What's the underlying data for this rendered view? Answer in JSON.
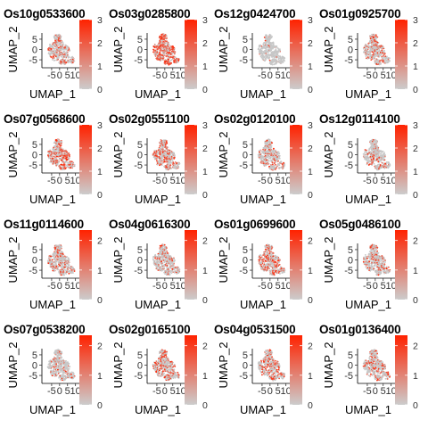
{
  "colors": {
    "low": "#cccccc",
    "high": "#ff2200",
    "point_grey": "#c7c7c7"
  },
  "chart_data": [
    {
      "type": "scatter",
      "title": "Os10g0533600",
      "xlabel": "UMAP_1",
      "ylabel": "UMAP_2",
      "x_ticks": [
        "-5",
        "0",
        "5",
        "10"
      ],
      "y_ticks": [
        "5",
        "0",
        "-5"
      ],
      "color_scale": {
        "min": 0,
        "max": 3,
        "ticks": [
          "0",
          "1",
          "2",
          "3"
        ]
      },
      "expression_level": 0.35
    },
    {
      "type": "scatter",
      "title": "Os03g0285800",
      "xlabel": "UMAP_1",
      "ylabel": "UMAP_2",
      "x_ticks": [
        "-5",
        "0",
        "5",
        "10"
      ],
      "y_ticks": [
        "5",
        "0",
        "-5"
      ],
      "color_scale": {
        "min": 0,
        "max": 3,
        "ticks": [
          "0",
          "1",
          "2",
          "3"
        ]
      },
      "expression_level": 0.75
    },
    {
      "type": "scatter",
      "title": "Os12g0424700",
      "xlabel": "UMAP_1",
      "ylabel": "UMAP_2",
      "x_ticks": [
        "-5",
        "0",
        "5",
        "10"
      ],
      "y_ticks": [
        "5",
        "0",
        "-5"
      ],
      "color_scale": {
        "min": 0,
        "max": 3,
        "ticks": [
          "0",
          "1",
          "2",
          "3"
        ]
      },
      "expression_level": 0.05
    },
    {
      "type": "scatter",
      "title": "Os01g0925700",
      "xlabel": "UMAP_1",
      "ylabel": "UMAP_2",
      "x_ticks": [
        "-5",
        "0",
        "5",
        "10"
      ],
      "y_ticks": [
        "5",
        "0",
        "-5"
      ],
      "color_scale": {
        "min": 0,
        "max": 3,
        "ticks": [
          "0",
          "1",
          "2",
          "3"
        ]
      },
      "expression_level": 0.3
    },
    {
      "type": "scatter",
      "title": "Os07g0568600",
      "xlabel": "UMAP_1",
      "ylabel": "UMAP_2",
      "x_ticks": [
        "-5",
        "0",
        "5",
        "10"
      ],
      "y_ticks": [
        "5",
        "0",
        "-5"
      ],
      "color_scale": {
        "min": 0,
        "max": 3,
        "ticks": [
          "0",
          "1",
          "2",
          "3"
        ]
      },
      "expression_level": 0.5
    },
    {
      "type": "scatter",
      "title": "Os02g0551100",
      "xlabel": "UMAP_1",
      "ylabel": "UMAP_2",
      "x_ticks": [
        "-5",
        "0",
        "5",
        "10"
      ],
      "y_ticks": [
        "5",
        "0",
        "-5"
      ],
      "color_scale": {
        "min": 0,
        "max": 3,
        "ticks": [
          "0",
          "1",
          "2",
          "3"
        ]
      },
      "expression_level": 0.45
    },
    {
      "type": "scatter",
      "title": "Os02g0120100",
      "xlabel": "UMAP_1",
      "ylabel": "UMAP_2",
      "x_ticks": [
        "-5",
        "0",
        "5",
        "10"
      ],
      "y_ticks": [
        "5",
        "0",
        "-5"
      ],
      "color_scale": {
        "min": 0,
        "max": 3,
        "ticks": [
          "0",
          "1",
          "2",
          "3"
        ]
      },
      "expression_level": 0.25
    },
    {
      "type": "scatter",
      "title": "Os12g0114100",
      "xlabel": "UMAP_1",
      "ylabel": "UMAP_2",
      "x_ticks": [
        "-5",
        "0",
        "5",
        "10"
      ],
      "y_ticks": [
        "5",
        "0",
        "-5"
      ],
      "color_scale": {
        "min": 0,
        "max": 3,
        "ticks": [
          "0",
          "1",
          "2",
          "3"
        ]
      },
      "expression_level": 0.25
    },
    {
      "type": "scatter",
      "title": "Os11g0114600",
      "xlabel": "UMAP_1",
      "ylabel": "UMAP_2",
      "x_ticks": [
        "-5",
        "0",
        "5",
        "10"
      ],
      "y_ticks": [
        "5",
        "0",
        "-5"
      ],
      "color_scale": {
        "min": 0,
        "max": 2,
        "ticks": [
          "0",
          "1",
          "2"
        ]
      },
      "expression_level": 0.3
    },
    {
      "type": "scatter",
      "title": "Os04g0616300",
      "xlabel": "UMAP_1",
      "ylabel": "UMAP_2",
      "x_ticks": [
        "-5",
        "0",
        "5",
        "10"
      ],
      "y_ticks": [
        "5",
        "0",
        "-5"
      ],
      "color_scale": {
        "min": 0,
        "max": 2,
        "ticks": [
          "0",
          "1",
          "2"
        ]
      },
      "expression_level": 0.3
    },
    {
      "type": "scatter",
      "title": "Os01g0699600",
      "xlabel": "UMAP_1",
      "ylabel": "UMAP_2",
      "x_ticks": [
        "-5",
        "0",
        "5",
        "10"
      ],
      "y_ticks": [
        "5",
        "0",
        "-5"
      ],
      "color_scale": {
        "min": 0,
        "max": 2,
        "ticks": [
          "0",
          "1",
          "2"
        ]
      },
      "expression_level": 0.45
    },
    {
      "type": "scatter",
      "title": "Os05g0486100",
      "xlabel": "UMAP_1",
      "ylabel": "UMAP_2",
      "x_ticks": [
        "-5",
        "0",
        "5",
        "10"
      ],
      "y_ticks": [
        "5",
        "0",
        "-5"
      ],
      "color_scale": {
        "min": 0,
        "max": 2,
        "ticks": [
          "0",
          "1",
          "2"
        ]
      },
      "expression_level": 0.3
    },
    {
      "type": "scatter",
      "title": "Os07g0538200",
      "xlabel": "UMAP_1",
      "ylabel": "UMAP_2",
      "x_ticks": [
        "-5",
        "0",
        "5",
        "10"
      ],
      "y_ticks": [
        "5",
        "0",
        "-5"
      ],
      "color_scale": {
        "min": 0,
        "max": 2,
        "ticks": [
          "0",
          "1",
          "2"
        ]
      },
      "expression_level": 0.2
    },
    {
      "type": "scatter",
      "title": "Os02g0165100",
      "xlabel": "UMAP_1",
      "ylabel": "UMAP_2",
      "x_ticks": [
        "-5",
        "0",
        "5",
        "10"
      ],
      "y_ticks": [
        "5",
        "0",
        "-5"
      ],
      "color_scale": {
        "min": 0,
        "max": 2,
        "ticks": [
          "0",
          "1",
          "2"
        ]
      },
      "expression_level": 0.35
    },
    {
      "type": "scatter",
      "title": "Os04g0531500",
      "xlabel": "UMAP_1",
      "ylabel": "UMAP_2",
      "x_ticks": [
        "-5",
        "0",
        "5",
        "10"
      ],
      "y_ticks": [
        "5",
        "0",
        "-5"
      ],
      "color_scale": {
        "min": 0,
        "max": 2,
        "ticks": [
          "0",
          "1",
          "2"
        ]
      },
      "expression_level": 0.4
    },
    {
      "type": "scatter",
      "title": "Os01g0136400",
      "xlabel": "UMAP_1",
      "ylabel": "UMAP_2",
      "x_ticks": [
        "-5",
        "0",
        "5",
        "10"
      ],
      "y_ticks": [
        "5",
        "0",
        "-5"
      ],
      "color_scale": {
        "min": 0,
        "max": 2,
        "ticks": [
          "0",
          "1",
          "2"
        ]
      },
      "expression_level": 0.3
    }
  ]
}
